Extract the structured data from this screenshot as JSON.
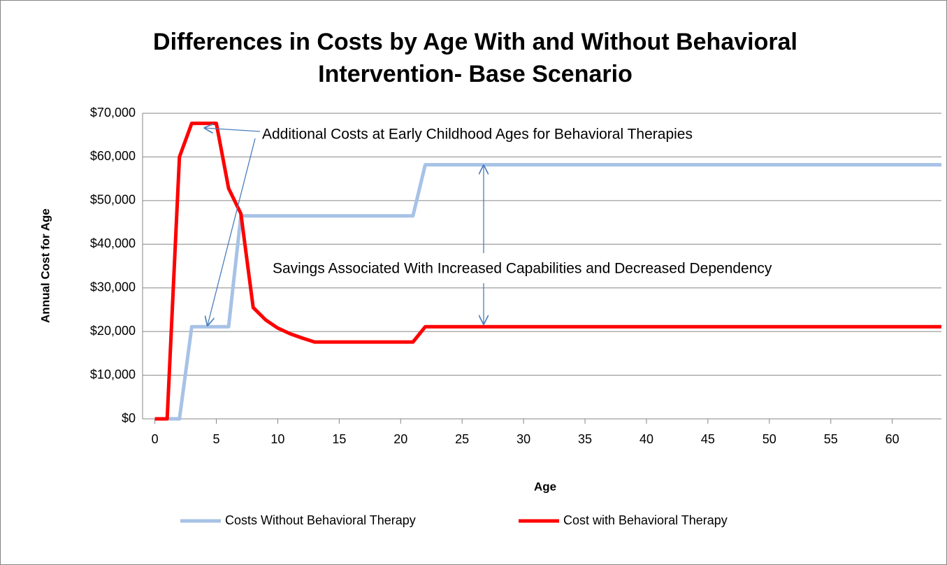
{
  "chart_data": {
    "type": "line",
    "title": [
      "Differences in Costs by Age With and Without Behavioral",
      "Intervention- Base Scenario"
    ],
    "x_label": "Age",
    "y_label": "Annual Cost for Age",
    "annotations": [
      "Additional Costs at Early Childhood Ages for Behavioral Therapies",
      "Savings Associated With Increased Capabilities and Decreased Dependency"
    ],
    "x": [
      0,
      1,
      2,
      3,
      4,
      5,
      6,
      7,
      8,
      9,
      10,
      11,
      12,
      13,
      14,
      15,
      16,
      17,
      18,
      19,
      20,
      21,
      22,
      23,
      24,
      25,
      26,
      27,
      28,
      29,
      30,
      31,
      32,
      33,
      34,
      35,
      36,
      37,
      38,
      39,
      40,
      41,
      42,
      43,
      44,
      45,
      46,
      47,
      48,
      49,
      50,
      51,
      52,
      53,
      54,
      55,
      56,
      57,
      58,
      59,
      60,
      61,
      62,
      63,
      64
    ],
    "series": [
      {
        "name": "Costs Without Behavioral Therapy",
        "color": "#a7c2e6",
        "values": [
          0,
          0,
          0,
          21100,
          21100,
          21100,
          21100,
          46500,
          46500,
          46500,
          46500,
          46500,
          46500,
          46500,
          46500,
          46500,
          46500,
          46500,
          46500,
          46500,
          46500,
          46500,
          58200,
          58200,
          58200,
          58200,
          58200,
          58200,
          58200,
          58200,
          58200,
          58200,
          58200,
          58200,
          58200,
          58200,
          58200,
          58200,
          58200,
          58200,
          58200,
          58200,
          58200,
          58200,
          58200,
          58200,
          58200,
          58200,
          58200,
          58200,
          58200,
          58200,
          58200,
          58200,
          58200,
          58200,
          58200,
          58200,
          58200,
          58200,
          58200,
          58200,
          58200,
          58200,
          58200
        ]
      },
      {
        "name": "Cost with Behavioral Therapy",
        "color": "#ff0000",
        "values": [
          0,
          0,
          60000,
          67700,
          67700,
          67700,
          52800,
          47000,
          25500,
          22700,
          20800,
          19500,
          18500,
          17600,
          17600,
          17600,
          17600,
          17600,
          17600,
          17600,
          17600,
          17600,
          21100,
          21100,
          21100,
          21100,
          21100,
          21100,
          21100,
          21100,
          21100,
          21100,
          21100,
          21100,
          21100,
          21100,
          21100,
          21100,
          21100,
          21100,
          21100,
          21100,
          21100,
          21100,
          21100,
          21100,
          21100,
          21100,
          21100,
          21100,
          21100,
          21100,
          21100,
          21100,
          21100,
          21100,
          21100,
          21100,
          21100,
          21100,
          21100,
          21100,
          21100,
          21100,
          21100
        ]
      }
    ],
    "xlim": [
      -1,
      64
    ],
    "xticks": [
      0,
      5,
      10,
      15,
      20,
      25,
      30,
      35,
      40,
      45,
      50,
      55,
      60
    ],
    "ylim": [
      0,
      70000
    ],
    "yticks": [
      {
        "value": 0,
        "label": "$0"
      },
      {
        "value": 10000,
        "label": "$10,000"
      },
      {
        "value": 20000,
        "label": "$20,000"
      },
      {
        "value": 30000,
        "label": "$30,000"
      },
      {
        "value": 40000,
        "label": "$40,000"
      },
      {
        "value": 50000,
        "label": "$50,000"
      },
      {
        "value": 60000,
        "label": "$60,000"
      },
      {
        "value": 70000,
        "label": "$70,000"
      }
    ],
    "grid": true,
    "legend": "bottom"
  }
}
